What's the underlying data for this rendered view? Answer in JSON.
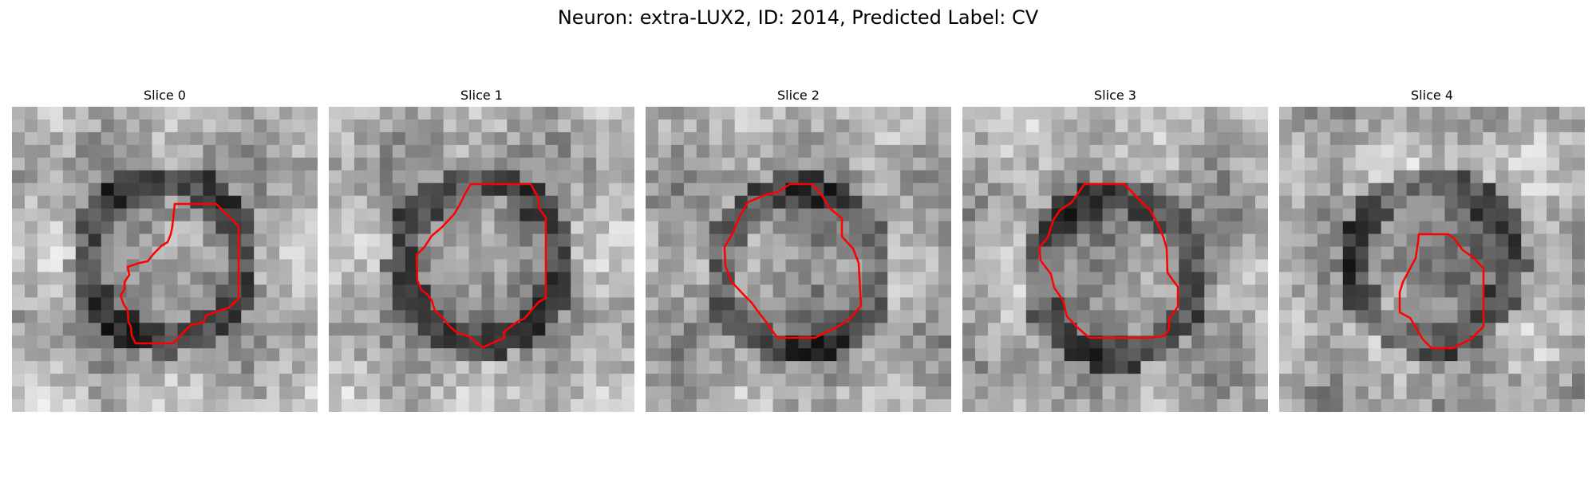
{
  "figure": {
    "title": "Neuron: extra-LUX2, ID: 2014, Predicted Label: CV",
    "outline_color": "#ff0000",
    "colormap": "grayscale"
  },
  "panels": [
    {
      "label": "Slice 0"
    },
    {
      "label": "Slice 1"
    },
    {
      "label": "Slice 2"
    },
    {
      "label": "Slice 3"
    },
    {
      "label": "Slice 4"
    }
  ]
}
